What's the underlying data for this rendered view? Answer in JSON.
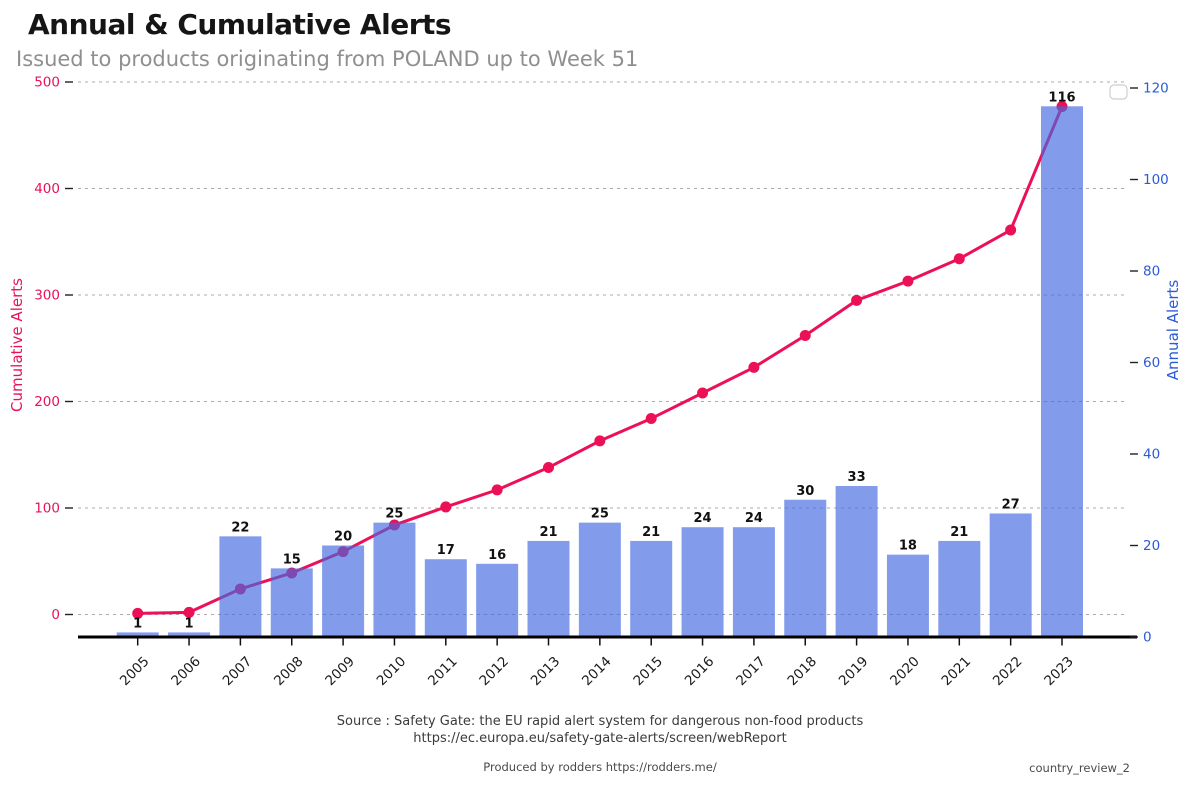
{
  "header": {
    "title": "Annual & Cumulative Alerts",
    "subtitle": "Issued to products originating from POLAND up to Week 51"
  },
  "chart_data": {
    "type": "combo-bar-line",
    "categories": [
      "2005",
      "2006",
      "2007",
      "2008",
      "2009",
      "2010",
      "2011",
      "2012",
      "2013",
      "2014",
      "2015",
      "2016",
      "2017",
      "2018",
      "2019",
      "2020",
      "2021",
      "2022",
      "2023"
    ],
    "series": [
      {
        "name": "Annual Alerts",
        "type": "bar",
        "axis": "right",
        "color": "#4169E1",
        "opacity": 0.66,
        "values": [
          1,
          1,
          22,
          15,
          20,
          25,
          17,
          16,
          21,
          25,
          21,
          24,
          24,
          30,
          33,
          18,
          21,
          27,
          116
        ]
      },
      {
        "name": "Cumulative Alerts",
        "type": "line",
        "axis": "left",
        "color": "#EC1057",
        "marker": "circle",
        "values": [
          1,
          2,
          24,
          39,
          59,
          84,
          101,
          117,
          138,
          163,
          184,
          208,
          232,
          262,
          295,
          313,
          334,
          361,
          477
        ]
      }
    ],
    "left_axis": {
      "label": "Cumulative Alerts",
      "color": "#E8125A",
      "min": 0,
      "max": 500,
      "ticks": [
        0,
        100,
        200,
        300,
        400,
        500
      ]
    },
    "right_axis": {
      "label": "Annual Alerts",
      "color": "#2B5BD7",
      "min": 0,
      "max": 120,
      "ticks": [
        0,
        20,
        40,
        60,
        80,
        100,
        120
      ]
    },
    "grid": {
      "horizontal": true,
      "style": "dashed",
      "color": "#ababab"
    },
    "legend": {
      "box_visible": true,
      "entries": []
    },
    "bar_labels_shown": true
  },
  "footer": {
    "source_line1": "Source : Safety Gate: the EU rapid alert system for dangerous non-food products",
    "source_line2": "https://ec.europa.eu/safety-gate-alerts/screen/webReport",
    "produced_by": "Produced by rodders https://rodders.me/",
    "document_id": "country_review_2"
  }
}
